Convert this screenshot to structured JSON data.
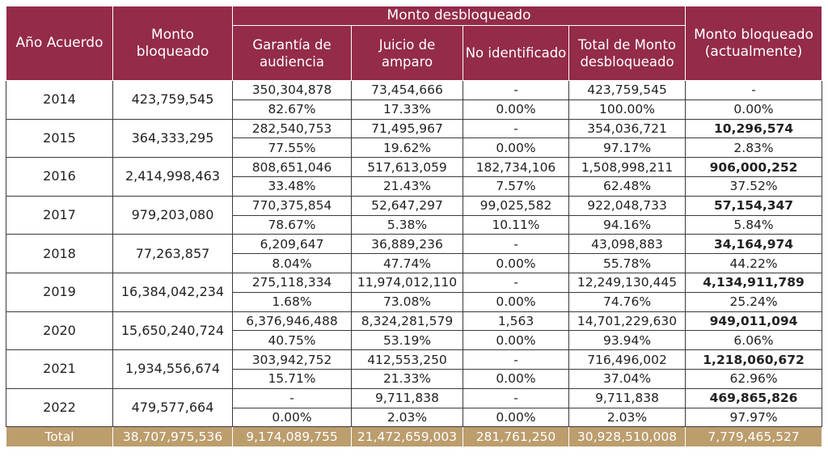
{
  "headers": {
    "year": "Año Acuerdo",
    "blocked": "Monto bloqueado",
    "unlocked_group": "Monto desbloqueado",
    "hearing": "Garantía de audiencia",
    "amparo": "Juicio de amparo",
    "unidentified": "No identificado",
    "total_unlocked": "Total de Monto desbloqueado",
    "currently_blocked": "Monto bloqueado (actualmente)"
  },
  "rows": [
    {
      "year": "2014",
      "blocked": "423,759,545",
      "amounts": [
        "350,304,878",
        "73,454,666",
        "-",
        "423,759,545",
        "-"
      ],
      "percents": [
        "82.67%",
        "17.33%",
        "0.00%",
        "100.00%",
        "0.00%"
      ]
    },
    {
      "year": "2015",
      "blocked": "364,333,295",
      "amounts": [
        "282,540,753",
        "71,495,967",
        "-",
        "354,036,721",
        "10,296,574"
      ],
      "percents": [
        "77.55%",
        "19.62%",
        "0.00%",
        "97.17%",
        "2.83%"
      ]
    },
    {
      "year": "2016",
      "blocked": "2,414,998,463",
      "amounts": [
        "808,651,046",
        "517,613,059",
        "182,734,106",
        "1,508,998,211",
        "906,000,252"
      ],
      "percents": [
        "33.48%",
        "21.43%",
        "7.57%",
        "62.48%",
        "37.52%"
      ]
    },
    {
      "year": "2017",
      "blocked": "979,203,080",
      "amounts": [
        "770,375,854",
        "52,647,297",
        "99,025,582",
        "922,048,733",
        "57,154,347"
      ],
      "percents": [
        "78.67%",
        "5.38%",
        "10.11%",
        "94.16%",
        "5.84%"
      ]
    },
    {
      "year": "2018",
      "blocked": "77,263,857",
      "amounts": [
        "6,209,647",
        "36,889,236",
        "-",
        "43,098,883",
        "34,164,974"
      ],
      "percents": [
        "8.04%",
        "47.74%",
        "0.00%",
        "55.78%",
        "44.22%"
      ]
    },
    {
      "year": "2019",
      "blocked": "16,384,042,234",
      "amounts": [
        "275,118,334",
        "11,974,012,110",
        "-",
        "12,249,130,445",
        "4,134,911,789"
      ],
      "percents": [
        "1.68%",
        "73.08%",
        "0.00%",
        "74.76%",
        "25.24%"
      ]
    },
    {
      "year": "2020",
      "blocked": "15,650,240,724",
      "amounts": [
        "6,376,946,488",
        "8,324,281,579",
        "1,563",
        "14,701,229,630",
        "949,011,094"
      ],
      "percents": [
        "40.75%",
        "53.19%",
        "0.00%",
        "93.94%",
        "6.06%"
      ]
    },
    {
      "year": "2021",
      "blocked": "1,934,556,674",
      "amounts": [
        "303,942,752",
        "412,553,250",
        "-",
        "716,496,002",
        "1,218,060,672"
      ],
      "percents": [
        "15.71%",
        "21.33%",
        "0.00%",
        "37.04%",
        "62.96%"
      ]
    },
    {
      "year": "2022",
      "blocked": "479,577,664",
      "amounts": [
        "-",
        "9,711,838",
        "-",
        "9,711,838",
        "469,865,826"
      ],
      "percents": [
        "0.00%",
        "2.03%",
        "0.00%",
        "2.03%",
        "97.97%"
      ]
    }
  ],
  "total": {
    "label": "Total",
    "values": [
      "38,707,975,536",
      "9,174,089,755",
      "21,472,659,003",
      "281,761,250",
      "30,928,510,008",
      "7,779,465,527"
    ]
  },
  "colors": {
    "header_bg": "#932b49",
    "total_bg": "#bc9d6c"
  }
}
